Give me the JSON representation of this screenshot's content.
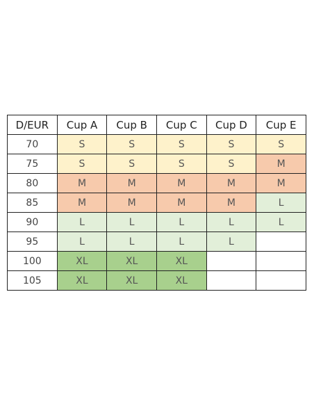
{
  "table": {
    "header": [
      "D/EUR",
      "Cup A",
      "Cup B",
      "Cup C",
      "Cup D",
      "Cup E"
    ],
    "rows": [
      [
        "70",
        "S",
        "S",
        "S",
        "S",
        "S"
      ],
      [
        "75",
        "S",
        "S",
        "S",
        "S",
        "M"
      ],
      [
        "80",
        "M",
        "M",
        "M",
        "M",
        "M"
      ],
      [
        "85",
        "M",
        "M",
        "M",
        "M",
        "L"
      ],
      [
        "90",
        "L",
        "L",
        "L",
        "L",
        "L"
      ],
      [
        "95",
        "L",
        "L",
        "L",
        "L"
      ],
      [
        "100",
        "XL",
        "XL",
        "XL"
      ],
      [
        "105",
        "XL",
        "XL",
        "XL"
      ]
    ],
    "cell_colors": {
      "S": "#fef2cb",
      "M": "#f7caac",
      "L": "#e2efd9",
      "XL": "#a8d08d"
    }
  }
}
